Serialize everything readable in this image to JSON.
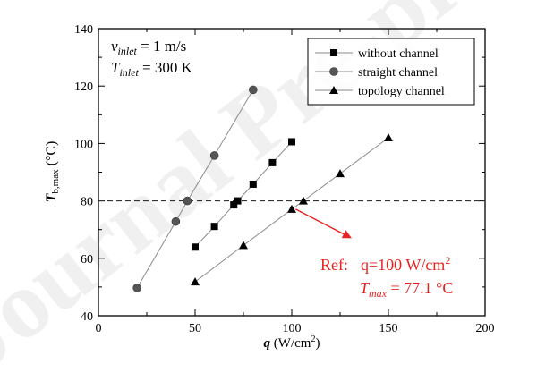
{
  "watermark": "Journal Pre-proof",
  "chart_data": {
    "type": "scatter",
    "title": "",
    "xlabel": {
      "main": "q",
      "unit": " (W/cm",
      "sup": "2",
      "close": ")"
    },
    "ylabel": {
      "main": "T",
      "sub": "b,max",
      "unit": " (°C)"
    },
    "xlim": [
      0,
      200
    ],
    "ylim": [
      40,
      140
    ],
    "x_ticks": [
      "0",
      "50",
      "100",
      "150",
      "200"
    ],
    "y_ticks": [
      "40",
      "60",
      "80",
      "100",
      "120",
      "140"
    ],
    "conditions": {
      "v_main": "v",
      "v_sub": "inlet",
      "v_value": " = 1 m/s",
      "t_main": "T",
      "t_sub": "inlet",
      "t_value": " = 300 K"
    },
    "legend_position": "top-right",
    "series": [
      {
        "name": "without channel",
        "marker": "square",
        "x": [
          50,
          60,
          70,
          72,
          80,
          90,
          100
        ],
        "y": [
          63.9,
          71.1,
          78.6,
          80.0,
          85.8,
          93.3,
          100.6
        ]
      },
      {
        "name": "straight channel",
        "marker": "circle",
        "x": [
          20,
          40,
          46,
          60,
          80
        ],
        "y": [
          49.7,
          72.8,
          80.0,
          95.8,
          118.7
        ]
      },
      {
        "name": "topology channel",
        "marker": "triangle",
        "x": [
          50,
          75,
          100,
          106,
          125,
          150
        ],
        "y": [
          51.8,
          64.5,
          77.1,
          80.0,
          89.5,
          102.0
        ]
      }
    ],
    "reference_line": {
      "y": 80,
      "style": "dashed"
    },
    "annotation": {
      "ref_label": "Ref:",
      "q_text": "q=100 W/cm",
      "q_sup": "2",
      "t_main": "T",
      "t_sub": "max",
      "t_value": " = 77.1 °C",
      "arrow_from": [
        102,
        77.1
      ],
      "arrow_to": [
        131,
        67
      ],
      "color": "#e8231f"
    }
  }
}
